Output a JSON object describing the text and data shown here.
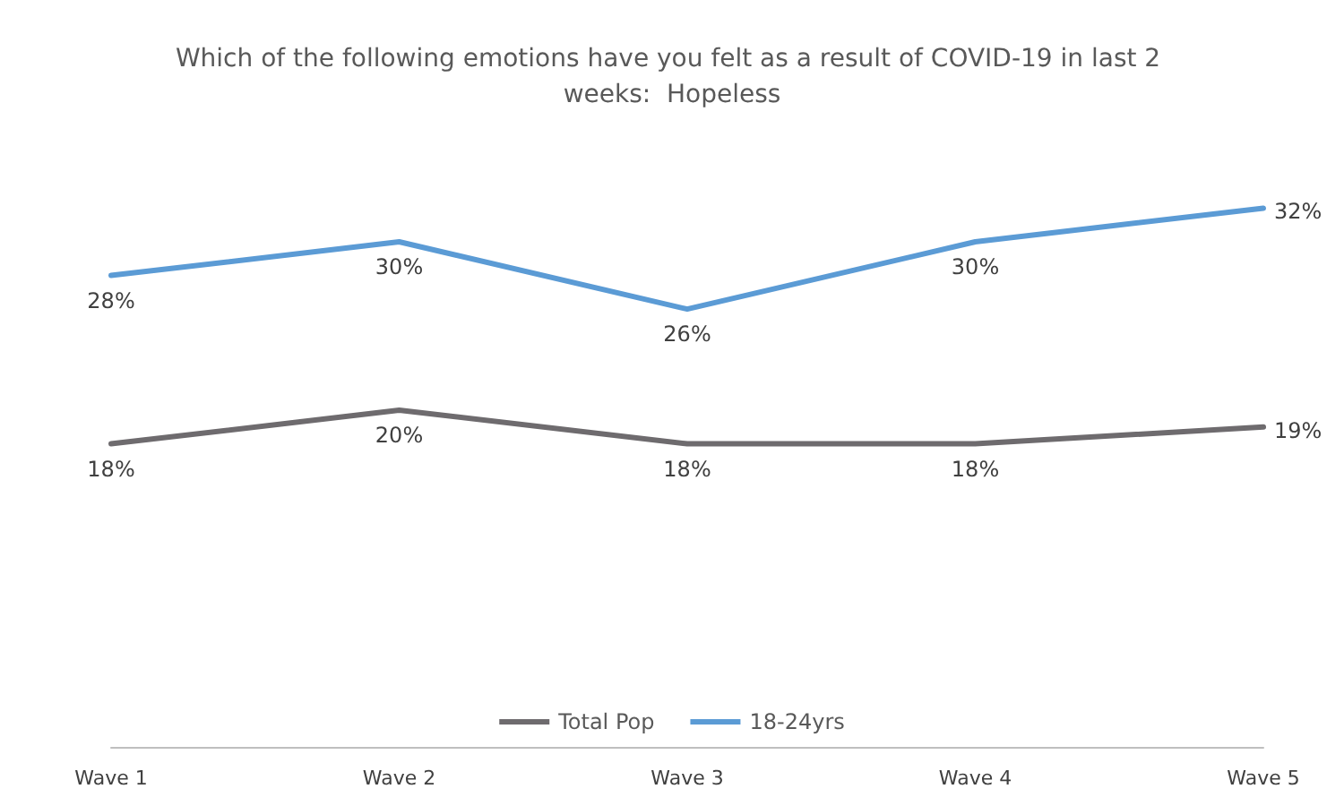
{
  "chart_data": {
    "type": "line",
    "title": "Which of the following emotions have you felt as a result of COVID-19 in last 2 weeks:  Hopeless",
    "categories": [
      "Wave 1",
      "Wave 2",
      "Wave 3",
      "Wave 4",
      "Wave 5"
    ],
    "series": [
      {
        "name": "Total Pop",
        "color": "#6e6b6e",
        "values": [
          18,
          20,
          18,
          18,
          19
        ],
        "value_labels": [
          "18%",
          "20%",
          "18%",
          "18%",
          "19%"
        ]
      },
      {
        "name": "18-24yrs",
        "color": "#5b9bd5",
        "values": [
          28,
          30,
          26,
          30,
          32
        ],
        "value_labels": [
          "28%",
          "30%",
          "26%",
          "30%",
          "32%"
        ]
      }
    ],
    "tick_labels": "x",
    "legend": "bottom",
    "grid": false,
    "marker": "none",
    "line_style": "solid"
  }
}
